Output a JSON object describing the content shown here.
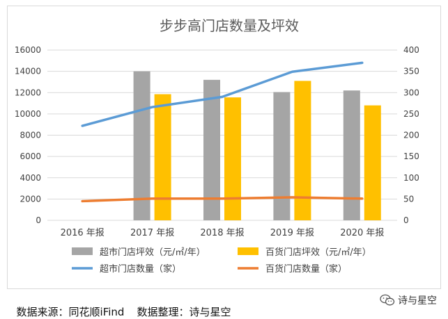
{
  "chart_data": {
    "type": "bar",
    "title": "步步高门店数量及坪效",
    "categories": [
      "2016 年报",
      "2017 年报",
      "2018 年报",
      "2019 年报",
      "2020 年报"
    ],
    "y_left": {
      "ylim": [
        0,
        16000
      ],
      "ticks": [
        "0",
        "2000",
        "4000",
        "6000",
        "8000",
        "10000",
        "12000",
        "14000",
        "16000"
      ]
    },
    "y_right": {
      "ylim": [
        0,
        400
      ],
      "ticks": [
        "0",
        "50",
        "100",
        "150",
        "200",
        "250",
        "300",
        "350",
        "400"
      ]
    },
    "series": [
      {
        "name": "超市门店坪效（元/㎡/年）",
        "type": "bar",
        "axis": "left",
        "color": "#a5a5a5",
        "values": [
          null,
          14000,
          13200,
          12050,
          12200
        ]
      },
      {
        "name": "百货门店坪效（元/㎡/年）",
        "type": "bar",
        "axis": "left",
        "color": "#ffc000",
        "values": [
          null,
          11850,
          11550,
          13100,
          10800
        ]
      },
      {
        "name": "超市门店数量（家）",
        "type": "line",
        "axis": "right",
        "color": "#5b9bd5",
        "values": [
          222,
          266,
          290,
          349,
          370
        ]
      },
      {
        "name": "百货门店数量（家）",
        "type": "line",
        "axis": "right",
        "color": "#ed7d31",
        "values": [
          45,
          51,
          51,
          54,
          51
        ]
      }
    ],
    "legend_position": "bottom",
    "grid": true
  },
  "footer": {
    "source": "数据来源：同花顺iFind",
    "compiled_by": "数据整理：诗与星空"
  },
  "brand": {
    "label": "诗与星空"
  }
}
